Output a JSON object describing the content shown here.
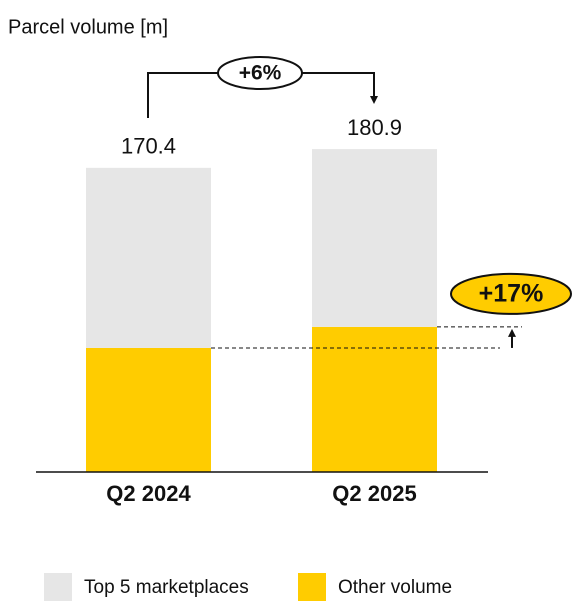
{
  "chart_data": {
    "type": "stacked_bar",
    "title": "Parcel volume [m]",
    "categories": [
      "Q2 2024",
      "Q2 2025"
    ],
    "series": [
      {
        "name": "Other volume",
        "color": "#ffcc00",
        "values": [
          69.5,
          81.3
        ]
      },
      {
        "name": "Top 5 marketplaces",
        "color": "#e6e6e6",
        "values": [
          100.9,
          99.6
        ]
      }
    ],
    "totals": [
      170.4,
      180.9
    ],
    "ylim": [
      0,
      200
    ],
    "annotations": [
      "+6%",
      "+17%"
    ]
  }
}
